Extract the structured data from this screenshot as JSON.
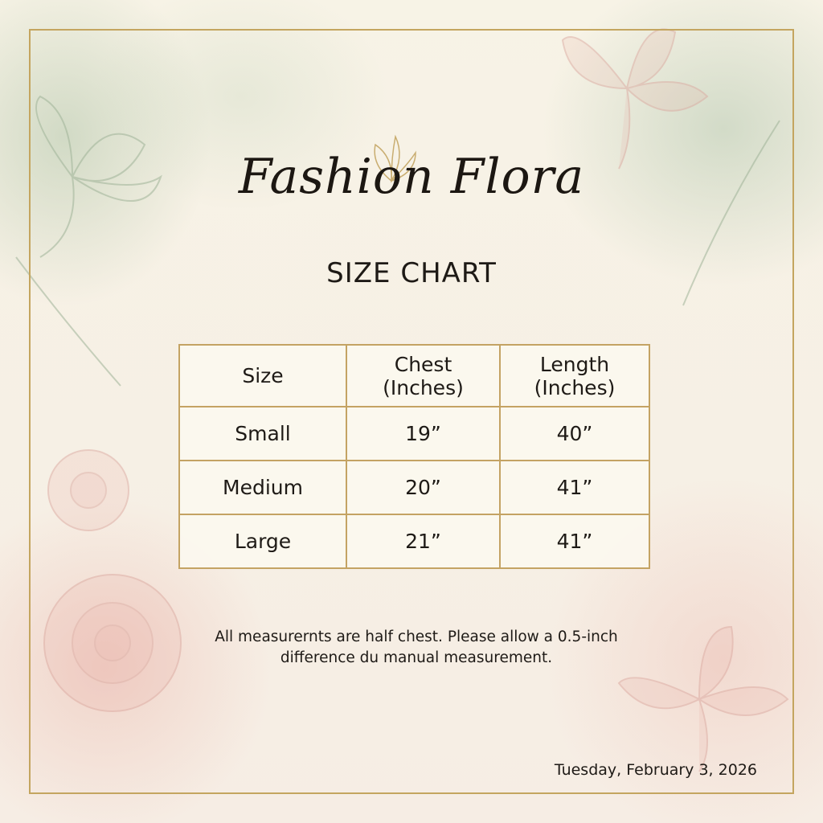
{
  "brand": {
    "name": "Fashion Flora"
  },
  "title": "SIZE CHART",
  "table": {
    "headers": [
      [
        "Size"
      ],
      [
        "Chest",
        "(Inches)"
      ],
      [
        "Length",
        "(Inches)"
      ]
    ],
    "rows": [
      [
        "Small",
        "19”",
        "40”"
      ],
      [
        "Medium",
        "20”",
        "41”"
      ],
      [
        "Large",
        "21”",
        "41”"
      ]
    ]
  },
  "note": {
    "line1": "All measurernts are half chest. Please allow a 0.5-inch",
    "line2": "difference du manual measurement."
  },
  "date": "Tuesday, February 3, 2026",
  "colors": {
    "gold": "#c4a55f",
    "sage": "#b2c6aa",
    "blush": "#ecbeb4",
    "background": "#f8f4e9"
  }
}
